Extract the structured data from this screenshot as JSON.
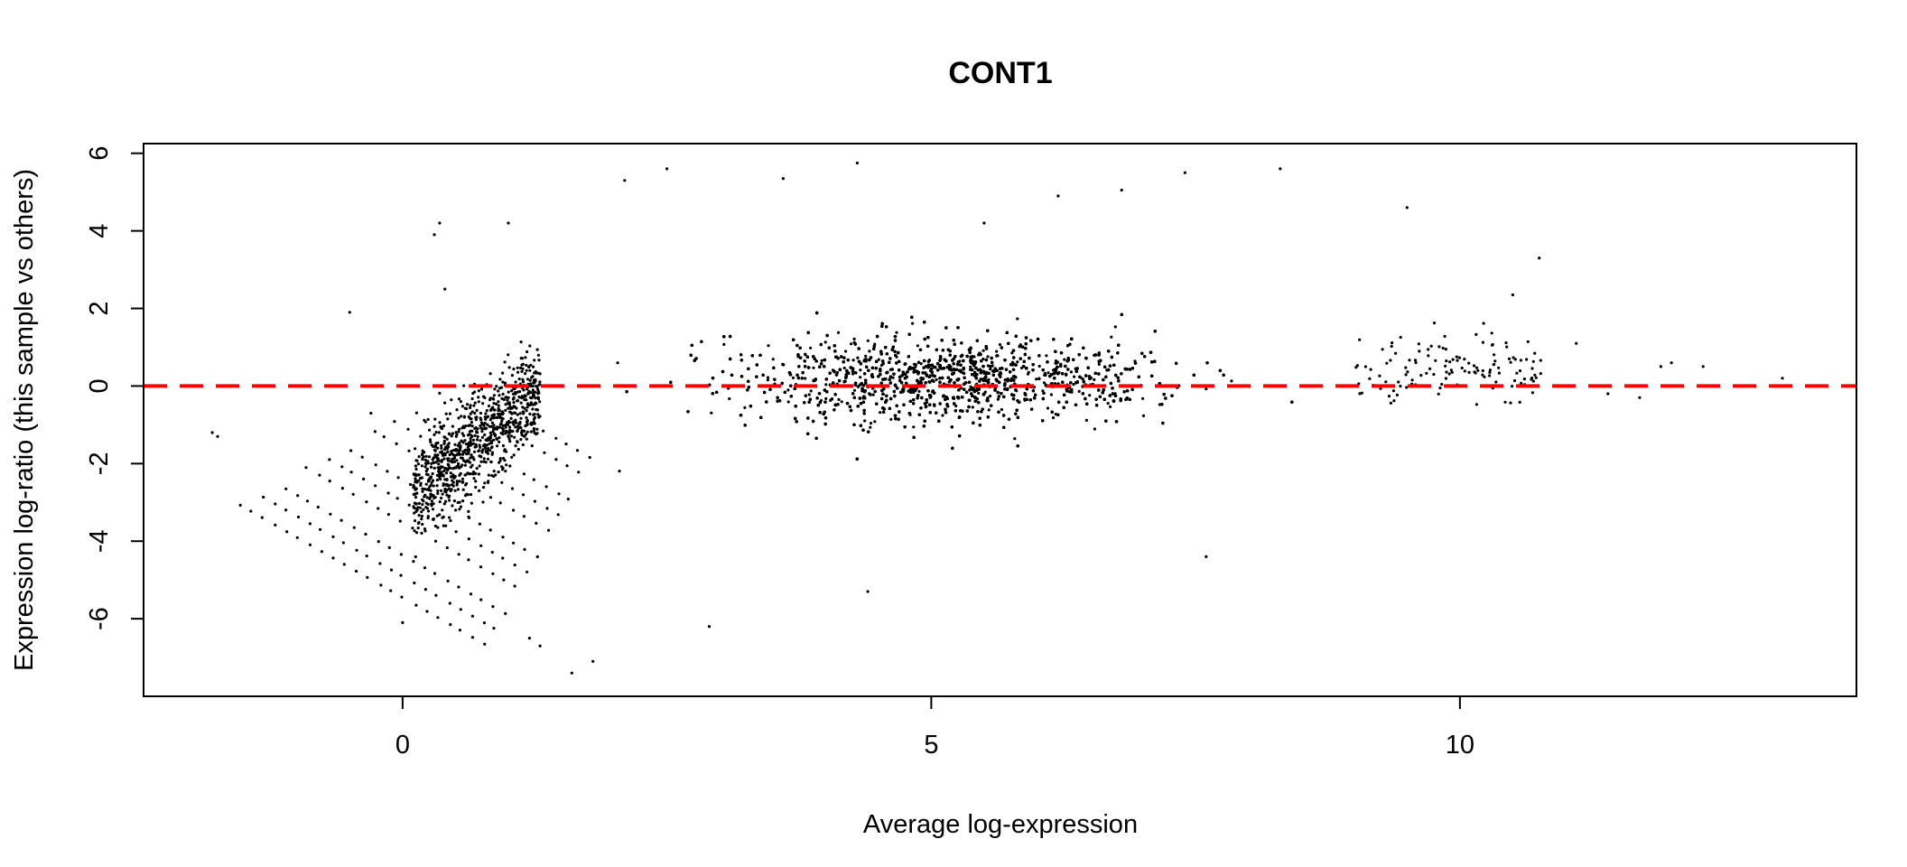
{
  "chart_data": {
    "type": "scatter",
    "title": "CONT1",
    "xlabel": "Average log-expression",
    "ylabel": "Expression log-ratio (this sample vs others)",
    "xlim": [
      -2.45,
      13.75
    ],
    "ylim": [
      -8.0,
      6.25
    ],
    "xticks": [
      0,
      5,
      10
    ],
    "yticks": [
      -6,
      -4,
      -2,
      0,
      2,
      4,
      6
    ],
    "grid": false,
    "legend": "none",
    "point_color": "#000000",
    "reference_line": {
      "y": 0,
      "style": "dashed",
      "color": "#ff0000"
    },
    "outlier_points": [
      [
        -1.8,
        -1.2
      ],
      [
        -1.75,
        -1.3
      ],
      [
        -0.5,
        1.9
      ],
      [
        -0.3,
        -0.7
      ],
      [
        0.0,
        -6.1
      ],
      [
        0.3,
        3.9
      ],
      [
        0.35,
        4.2
      ],
      [
        0.4,
        2.5
      ],
      [
        1.0,
        4.2
      ],
      [
        1.2,
        -6.5
      ],
      [
        1.3,
        -6.7
      ],
      [
        1.6,
        -7.4
      ],
      [
        1.8,
        -7.1
      ],
      [
        2.1,
        5.3
      ],
      [
        2.5,
        5.6
      ],
      [
        2.9,
        -6.2
      ],
      [
        3.6,
        5.35
      ],
      [
        4.3,
        5.75
      ],
      [
        4.4,
        -5.3
      ],
      [
        5.5,
        4.2
      ],
      [
        6.2,
        4.9
      ],
      [
        6.8,
        5.05
      ],
      [
        7.4,
        5.5
      ],
      [
        7.6,
        -4.4
      ],
      [
        8.3,
        5.6
      ],
      [
        9.5,
        4.6
      ],
      [
        10.5,
        2.35
      ],
      [
        10.75,
        3.3
      ],
      [
        11.1,
        1.1
      ],
      [
        11.4,
        -0.2
      ],
      [
        11.9,
        0.5
      ],
      [
        12.3,
        0.5
      ],
      [
        13.05,
        0.2
      ],
      [
        12.0,
        0.6
      ],
      [
        11.7,
        -0.3
      ]
    ],
    "bulk_distribution": {
      "point_count": 12000,
      "x_mean": 5.2,
      "x_sd": 2.0,
      "x_range": [
        1.0,
        10.3
      ],
      "y_center": 0.2,
      "low_expression_diagonal_bands": true
    }
  }
}
